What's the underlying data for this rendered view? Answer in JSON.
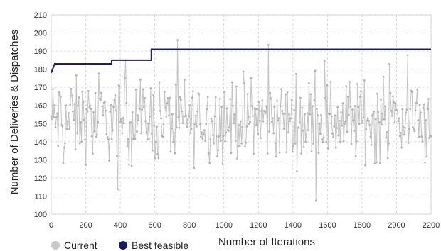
{
  "chart_data": {
    "type": "line",
    "xlabel": "Number of Iterations",
    "ylabel": "Number of Deliveries & Dispatches",
    "xlim": [
      0,
      2200
    ],
    "ylim": [
      100,
      210
    ],
    "xticks": [
      0,
      200,
      400,
      600,
      800,
      1000,
      1200,
      1400,
      1600,
      1800,
      2000,
      2200
    ],
    "yticks": [
      100,
      110,
      120,
      130,
      140,
      150,
      160,
      170,
      180,
      190,
      200,
      210
    ],
    "grid": "on",
    "legend_position": "bottom-left",
    "series": [
      {
        "name": "Current",
        "color": "#bdbdbd",
        "marker": "circle",
        "description_note": "fluctuates roughly between 107 and 207 around a mean near 152",
        "values_generated": {
          "count": 440,
          "x_start": 0,
          "x_end": 2200,
          "mean": 152,
          "min": 107,
          "max": 207
        }
      },
      {
        "name": "Best feasible",
        "color": "#1f1f5f",
        "marker": "circle",
        "x": [
          0,
          20,
          350,
          350,
          580,
          580,
          2200
        ],
        "y": [
          178,
          183,
          183,
          185,
          185,
          191,
          191
        ]
      }
    ]
  },
  "legend": {
    "current_label": "Current",
    "best_label": "Best feasible"
  }
}
